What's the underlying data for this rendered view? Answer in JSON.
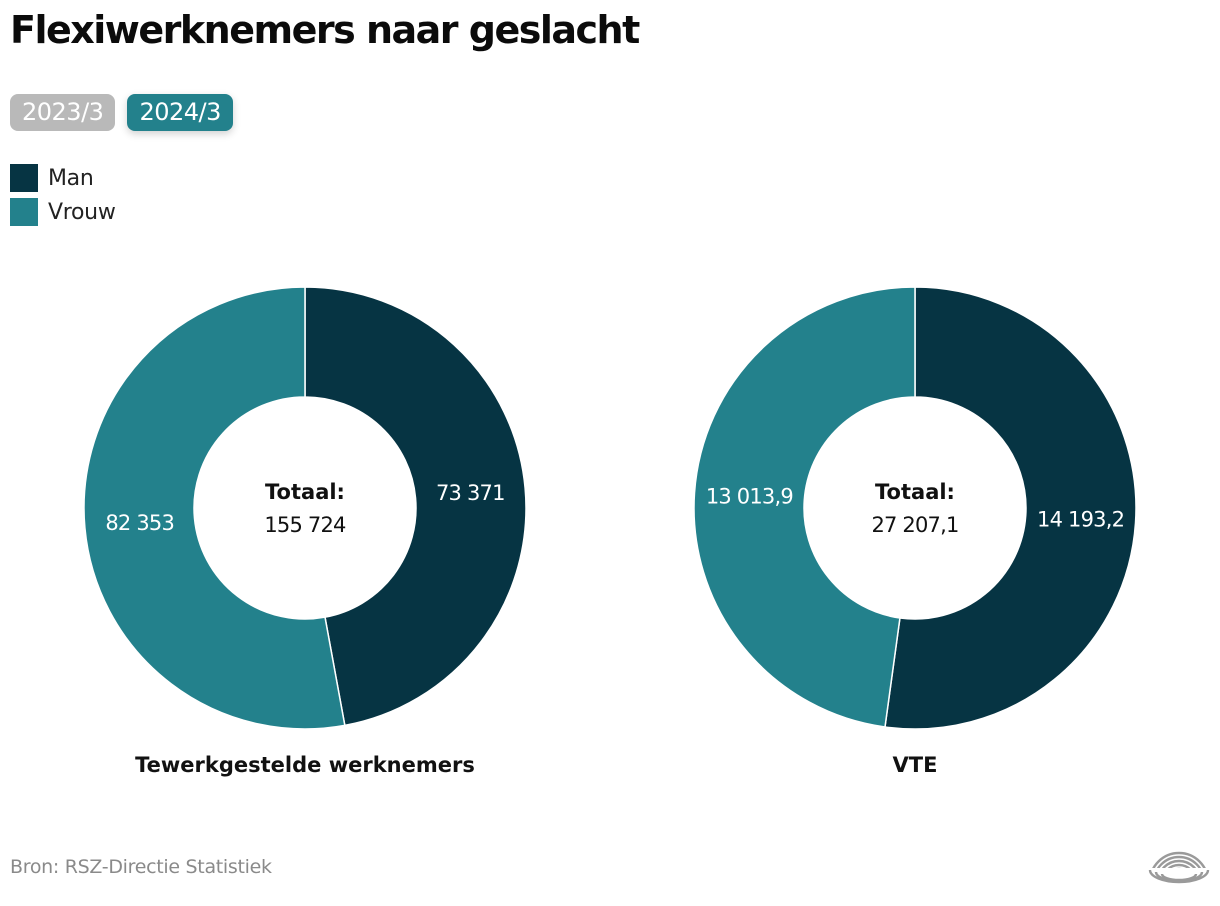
{
  "title": "Flexiwerknemers naar geslacht",
  "tabs": [
    {
      "label": "2023/3",
      "active": false
    },
    {
      "label": "2024/3",
      "active": true
    }
  ],
  "legend": [
    {
      "label": "Man",
      "color": "#063443"
    },
    {
      "label": "Vrouw",
      "color": "#23818c"
    }
  ],
  "chart_data": [
    {
      "type": "pie",
      "variant": "donut",
      "title": "Tewerkgestelde werknemers",
      "center_label": "Totaal:",
      "center_value": "155 724",
      "total": 155724,
      "categories": [
        "Man",
        "Vrouw"
      ],
      "values": [
        73371,
        82353
      ],
      "value_labels": [
        "73 371",
        "82 353"
      ],
      "colors": [
        "#063443",
        "#23818c"
      ]
    },
    {
      "type": "pie",
      "variant": "donut",
      "title": "VTE",
      "center_label": "Totaal:",
      "center_value": "27 207,1",
      "total": 27207.1,
      "categories": [
        "Man",
        "Vrouw"
      ],
      "values": [
        14193.2,
        13013.9
      ],
      "value_labels": [
        "14 193,2",
        "13 013,9"
      ],
      "colors": [
        "#063443",
        "#23818c"
      ]
    }
  ],
  "source": "Bron: RSZ-Directie Statistiek",
  "logo_icon": "rsz-arcs-logo-icon"
}
